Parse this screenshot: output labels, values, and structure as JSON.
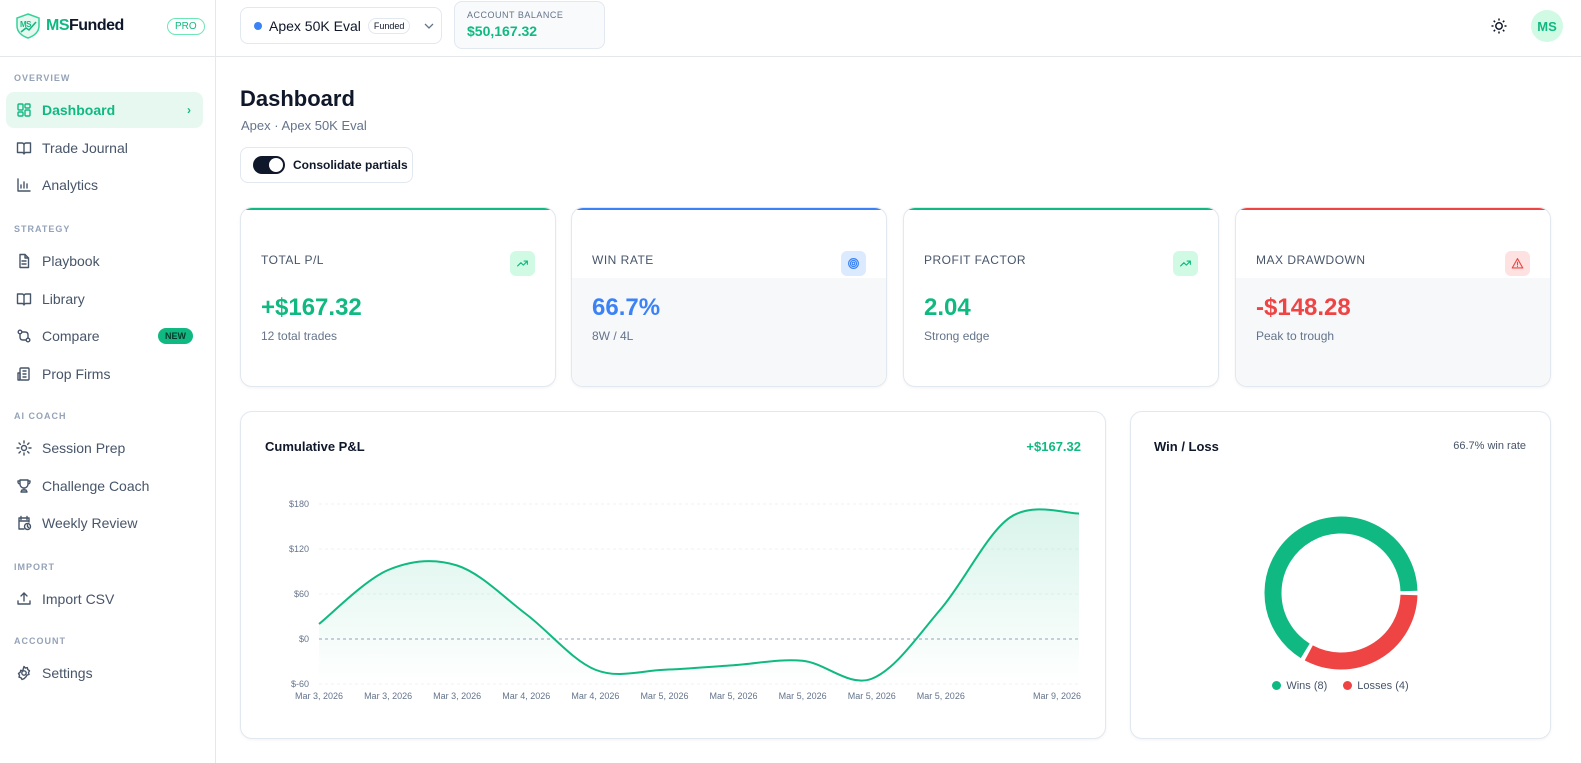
{
  "brand": {
    "name_prefix": "MS",
    "name_suffix": "Funded",
    "plan": "PRO"
  },
  "sidebar": {
    "sections": [
      {
        "label": "OVERVIEW",
        "items": [
          {
            "label": "Dashboard",
            "icon": "layout-grid-icon",
            "active": true
          },
          {
            "label": "Trade Journal",
            "icon": "book-open-icon"
          },
          {
            "label": "Analytics",
            "icon": "bar-chart-icon"
          }
        ]
      },
      {
        "label": "STRATEGY",
        "items": [
          {
            "label": "Playbook",
            "icon": "file-text-icon"
          },
          {
            "label": "Library",
            "icon": "book-open-icon"
          },
          {
            "label": "Compare",
            "icon": "git-compare-icon",
            "badge": "NEW"
          },
          {
            "label": "Prop Firms",
            "icon": "building-icon"
          }
        ]
      },
      {
        "label": "AI COACH",
        "items": [
          {
            "label": "Session Prep",
            "icon": "sun-icon"
          },
          {
            "label": "Challenge Coach",
            "icon": "trophy-icon"
          },
          {
            "label": "Weekly Review",
            "icon": "calendar-clock-icon"
          }
        ]
      },
      {
        "label": "IMPORT",
        "items": [
          {
            "label": "Import CSV",
            "icon": "upload-icon"
          }
        ]
      },
      {
        "label": "ACCOUNT",
        "items": [
          {
            "label": "Settings",
            "icon": "gear-icon"
          }
        ]
      }
    ]
  },
  "header": {
    "account": {
      "name": "Apex 50K Eval",
      "status": "Funded"
    },
    "balance": {
      "label": "ACCOUNT BALANCE",
      "value": "$50,167.32"
    },
    "avatar": "MS"
  },
  "page": {
    "title": "Dashboard",
    "subtitle": "Apex · Apex 50K Eval",
    "toggle_label": "Consolidate partials",
    "toggle_on": true
  },
  "cards": [
    {
      "label": "TOTAL P/L",
      "value": "+$167.32",
      "note": "12 total trades",
      "color": "#10b981",
      "icon": "trending-up-icon"
    },
    {
      "label": "WIN RATE",
      "value": "66.7%",
      "note": "8W / 4L",
      "color": "#3b82f6",
      "icon": "target-icon"
    },
    {
      "label": "PROFIT FACTOR",
      "value": "2.04",
      "note": "Strong edge",
      "color": "#10b981",
      "icon": "trending-up-icon"
    },
    {
      "label": "MAX DRAWDOWN",
      "value": "-$148.28",
      "note": "Peak to trough",
      "color": "#ef4444",
      "icon": "alert-triangle-icon"
    }
  ],
  "chart_data": [
    {
      "type": "area",
      "title": "Cumulative P&L",
      "total": "+$167.32",
      "x": [
        "Mar 3, 2026",
        "Mar 3, 2026",
        "Mar 3, 2026",
        "Mar 4, 2026",
        "Mar 4, 2026",
        "Mar 5, 2026",
        "Mar 5, 2026",
        "Mar 5, 2026",
        "Mar 5, 2026",
        "Mar 5, 2026",
        "",
        "Mar 9, 2026"
      ],
      "values": [
        20,
        92,
        98,
        33,
        -41,
        -41,
        -35,
        -29,
        -53,
        40,
        162,
        167.32
      ],
      "yticks": [
        "$180",
        "$120",
        "$60",
        "$0",
        "$-60"
      ],
      "ylim": [
        -60,
        180
      ],
      "color": "#10b981"
    },
    {
      "type": "pie",
      "title": "Win / Loss",
      "subtitle": "66.7% win rate",
      "series": [
        {
          "name": "Wins (8)",
          "value": 8,
          "color": "#10b981"
        },
        {
          "name": "Losses (4)",
          "value": 4,
          "color": "#ef4444"
        }
      ]
    }
  ]
}
